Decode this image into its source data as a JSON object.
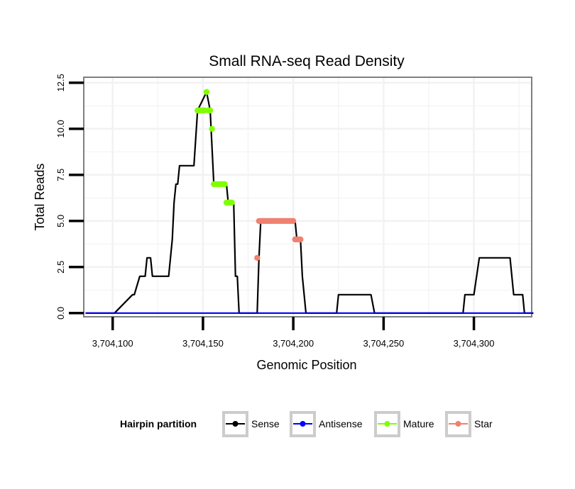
{
  "chart_data": {
    "type": "line",
    "title": "Small RNA-seq Read Density",
    "xlabel": "Genomic Position",
    "ylabel": "Total Reads",
    "xlim": [
      3704084,
      3704332
    ],
    "ylim": [
      -0.2,
      12.8
    ],
    "x_ticks": [
      3704100,
      3704150,
      3704200,
      3704250,
      3704300
    ],
    "x_tick_labels": [
      "3,704,100",
      "3,704,150",
      "3,704,200",
      "3,704,250",
      "3,704,300"
    ],
    "y_ticks": [
      0,
      2.5,
      5,
      7.5,
      10,
      12.5
    ],
    "y_tick_labels": [
      "0.0",
      "2.5",
      "5.0",
      "7.5",
      "10.0",
      "12.5"
    ],
    "grid": true,
    "legend": {
      "title": "Hairpin partition",
      "position": "bottom",
      "entries": [
        "Sense",
        "Antisense",
        "Mature",
        "Star"
      ]
    },
    "colors": {
      "sense": "#000000",
      "antisense": "#0000ff",
      "mature": "#7fff00",
      "star": "#f08070",
      "panel_border": "#7f7f7f",
      "grid": "#f2f2f2"
    },
    "series": [
      {
        "name": "Sense",
        "style": "line",
        "x": [
          3704085,
          3704101,
          3704111,
          3704112,
          3704115,
          3704116,
          3704118,
          3704119,
          3704121,
          3704122,
          3704129,
          3704131,
          3704133,
          3704134,
          3704135,
          3704136,
          3704137,
          3704145,
          3704147,
          3704152,
          3704154,
          3704156,
          3704163,
          3704164,
          3704167,
          3704168,
          3704169,
          3704170,
          3704180,
          3704181,
          3704182,
          3704200,
          3704201,
          3704202,
          3704204,
          3704205,
          3704207,
          3704224,
          3704225,
          3704243,
          3704245,
          3704294,
          3704295,
          3704299,
          3704300,
          3704303,
          3704304,
          3704320,
          3704322,
          3704327,
          3704328,
          3704333
        ],
        "y": [
          0,
          0,
          1,
          1,
          2,
          2,
          2,
          3,
          3,
          2,
          2,
          2,
          4,
          6,
          7,
          7,
          8,
          8,
          11,
          12,
          11,
          7,
          7,
          6,
          6,
          2,
          2,
          0,
          0,
          3,
          5,
          5,
          5,
          4,
          4,
          2,
          0,
          0,
          1,
          1,
          0,
          0,
          1,
          1,
          1,
          3,
          3,
          3,
          1,
          1,
          0,
          0
        ]
      },
      {
        "name": "Antisense",
        "style": "line",
        "x": [
          3704085,
          3704333
        ],
        "y": [
          0,
          0
        ]
      },
      {
        "name": "Mature",
        "style": "points",
        "x": [
          3704147,
          3704148,
          3704149,
          3704150,
          3704151,
          3704152,
          3704153,
          3704154,
          3704155,
          3704156,
          3704157,
          3704158,
          3704159,
          3704160,
          3704161,
          3704162,
          3704163,
          3704164,
          3704165,
          3704166
        ],
        "y": [
          11,
          11,
          11,
          11,
          11,
          12,
          11,
          11,
          10,
          7,
          7,
          7,
          7,
          7,
          7,
          7,
          6,
          6,
          6,
          6
        ]
      },
      {
        "name": "Star",
        "style": "points",
        "x": [
          3704180,
          3704181,
          3704182,
          3704183,
          3704184,
          3704185,
          3704186,
          3704187,
          3704188,
          3704189,
          3704190,
          3704191,
          3704192,
          3704193,
          3704194,
          3704195,
          3704196,
          3704197,
          3704198,
          3704199,
          3704200,
          3704201,
          3704202,
          3704203,
          3704204
        ],
        "y": [
          3,
          5,
          5,
          5,
          5,
          5,
          5,
          5,
          5,
          5,
          5,
          5,
          5,
          5,
          5,
          5,
          5,
          5,
          5,
          5,
          5,
          4,
          4,
          4,
          4
        ]
      }
    ]
  }
}
